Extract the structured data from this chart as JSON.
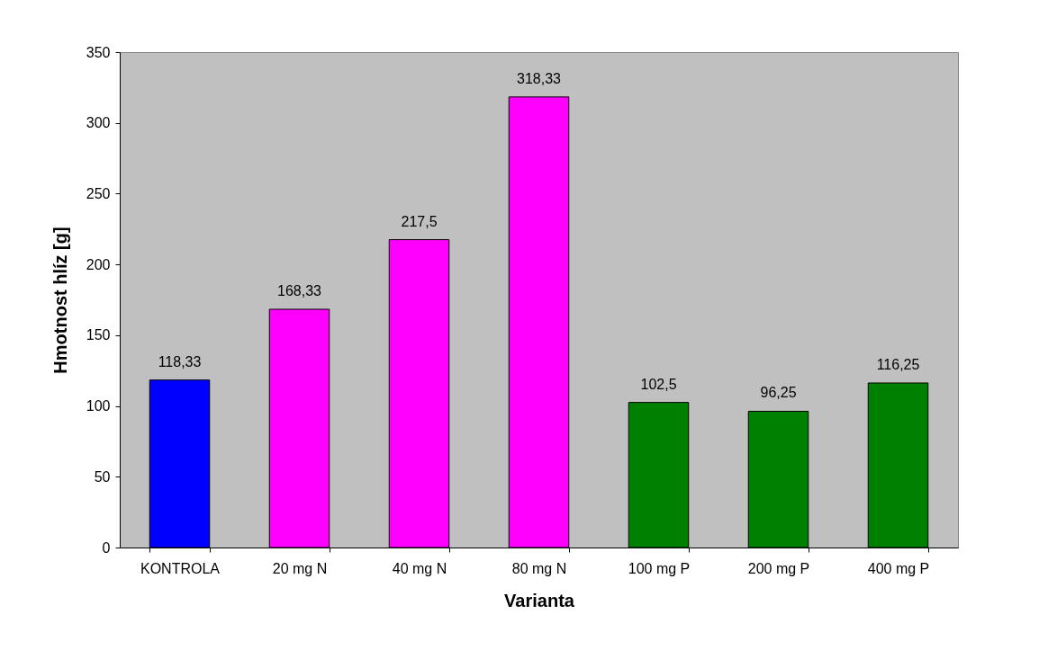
{
  "chart_data": {
    "type": "bar",
    "xlabel": "Varianta",
    "ylabel": "Hmotnost hlíz [g]",
    "categories": [
      "KONTROLA",
      "20 mg N",
      "40 mg N",
      "80 mg N",
      "100 mg P",
      "200 mg P",
      "400 mg P"
    ],
    "values": [
      118.33,
      168.33,
      217.5,
      318.33,
      102.5,
      96.25,
      116.25
    ],
    "colors": [
      "#0000ff",
      "#ff00ff",
      "#ff00ff",
      "#ff00ff",
      "#008000",
      "#008000",
      "#008000"
    ],
    "value_labels": [
      "118,33",
      "168,33",
      "217,5",
      "318,33",
      "102,5",
      "96,25",
      "116,25"
    ],
    "ylim": [
      0,
      350
    ],
    "yticks": [
      0,
      50,
      100,
      150,
      200,
      250,
      300,
      350
    ],
    "grid": false
  }
}
